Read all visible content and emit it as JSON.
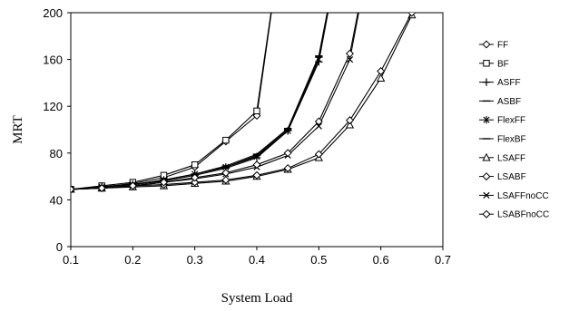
{
  "chart_data": {
    "type": "line",
    "title": "",
    "xlabel": "System Load",
    "ylabel": "MRT",
    "xlim": [
      0.1,
      0.7
    ],
    "ylim": [
      0,
      200
    ],
    "xticks": [
      "0.1",
      "0.2",
      "0.3",
      "0.4",
      "0.5",
      "0.6",
      "0.7"
    ],
    "yticks": [
      "0",
      "40",
      "80",
      "120",
      "160",
      "200"
    ],
    "grid": false,
    "legend_position": "right",
    "colors": {
      "line": "#000000",
      "axis": "#000000",
      "background": "#ffffff"
    },
    "series": [
      {
        "name": "FF",
        "marker": "diamond",
        "x": [
          0.1,
          0.15,
          0.2,
          0.25,
          0.3,
          0.35,
          0.4,
          0.45
        ],
        "y": [
          49,
          51,
          54,
          59,
          68,
          90,
          112,
          300
        ]
      },
      {
        "name": "BF",
        "marker": "square",
        "x": [
          0.1,
          0.15,
          0.2,
          0.25,
          0.3,
          0.35,
          0.4,
          0.45
        ],
        "y": [
          49,
          52,
          55,
          61,
          70,
          91,
          116,
          300
        ]
      },
      {
        "name": "ASFF",
        "marker": "plus",
        "x": [
          0.1,
          0.15,
          0.2,
          0.25,
          0.3,
          0.35,
          0.4,
          0.45,
          0.5,
          0.55
        ],
        "y": [
          49,
          51,
          53,
          56,
          61,
          67,
          76,
          99,
          158,
          300
        ]
      },
      {
        "name": "ASBF",
        "marker": "dash",
        "x": [
          0.1,
          0.15,
          0.2,
          0.25,
          0.3,
          0.35,
          0.4,
          0.45,
          0.5,
          0.55
        ],
        "y": [
          49,
          51,
          53,
          57,
          62,
          68,
          78,
          100,
          162,
          300
        ]
      },
      {
        "name": "FlexFF",
        "marker": "star",
        "x": [
          0.1,
          0.15,
          0.2,
          0.25,
          0.3,
          0.35,
          0.4,
          0.45,
          0.5,
          0.55
        ],
        "y": [
          49,
          51,
          53,
          57,
          62,
          68,
          77,
          99,
          160,
          300
        ]
      },
      {
        "name": "FlexBF",
        "marker": "dash",
        "x": [
          0.1,
          0.15,
          0.2,
          0.25,
          0.3,
          0.35,
          0.4,
          0.45,
          0.5,
          0.55
        ],
        "y": [
          49,
          51,
          53,
          57,
          62,
          69,
          79,
          101,
          163,
          300
        ]
      },
      {
        "name": "LSAFF",
        "marker": "triangle",
        "x": [
          0.1,
          0.15,
          0.2,
          0.25,
          0.3,
          0.35,
          0.4,
          0.45,
          0.5,
          0.55,
          0.6,
          0.65
        ],
        "y": [
          49,
          50,
          51,
          52,
          54,
          56,
          60,
          66,
          76,
          104,
          144,
          198
        ]
      },
      {
        "name": "LSABF",
        "marker": "diamond",
        "x": [
          0.1,
          0.15,
          0.2,
          0.25,
          0.3,
          0.35,
          0.4,
          0.45,
          0.5,
          0.55,
          0.6,
          0.65
        ],
        "y": [
          49,
          50,
          52,
          53,
          55,
          57,
          61,
          67,
          79,
          108,
          150,
          200
        ]
      },
      {
        "name": "LSAFFnoCC",
        "marker": "x",
        "x": [
          0.1,
          0.15,
          0.2,
          0.25,
          0.3,
          0.35,
          0.4,
          0.45,
          0.5,
          0.55,
          0.6
        ],
        "y": [
          49,
          50,
          52,
          55,
          58,
          62,
          68,
          78,
          103,
          160,
          300
        ]
      },
      {
        "name": "LSABFnoCC",
        "marker": "diamond",
        "x": [
          0.1,
          0.15,
          0.2,
          0.25,
          0.3,
          0.35,
          0.4,
          0.45,
          0.5,
          0.55,
          0.6
        ],
        "y": [
          49,
          50,
          52,
          55,
          59,
          63,
          70,
          80,
          107,
          165,
          300
        ]
      }
    ]
  }
}
